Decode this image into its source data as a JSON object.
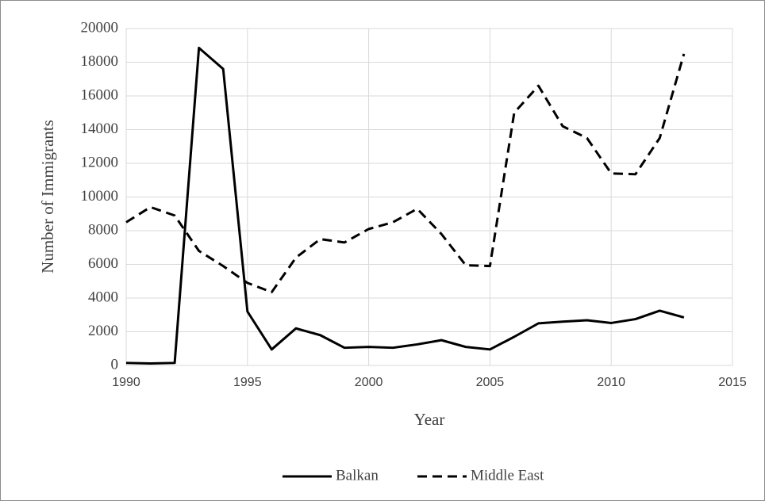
{
  "chart_data": {
    "type": "line",
    "x_label": "Year",
    "y_label": "Number of Immigrants",
    "x": [
      1990,
      1991,
      1992,
      1993,
      1994,
      1995,
      1996,
      1997,
      1998,
      1999,
      2000,
      2001,
      2002,
      2003,
      2004,
      2005,
      2006,
      2007,
      2008,
      2009,
      2010,
      2011,
      2012,
      2013
    ],
    "series": [
      {
        "name": "Balkan",
        "color": "#000000",
        "line_style": "solid",
        "values": [
          150,
          120,
          150,
          18850,
          17600,
          3200,
          950,
          2200,
          1800,
          1050,
          1100,
          1050,
          1250,
          1500,
          1100,
          950,
          1700,
          2500,
          2600,
          2680,
          2520,
          2750,
          3250,
          2850
        ]
      },
      {
        "name": "Middle East",
        "color": "#000000",
        "line_style": "dashed",
        "values": [
          8500,
          9400,
          8900,
          6800,
          5900,
          4900,
          4350,
          6400,
          7500,
          7300,
          8100,
          8500,
          9300,
          7800,
          5950,
          5900,
          15000,
          16600,
          14200,
          13500,
          11400,
          11350,
          13500,
          18500
        ]
      }
    ],
    "xlim": [
      1990,
      2015
    ],
    "xticks": [
      1990,
      1995,
      2000,
      2005,
      2010,
      2015
    ],
    "ylim": [
      0,
      20000
    ],
    "yticks": [
      0,
      2000,
      4000,
      6000,
      8000,
      10000,
      12000,
      14000,
      16000,
      18000,
      20000
    ],
    "grid": true,
    "legend": "bottom"
  }
}
